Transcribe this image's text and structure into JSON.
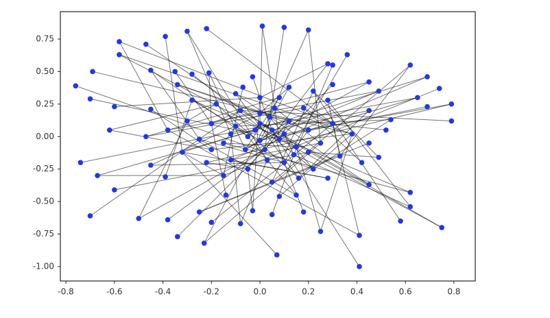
{
  "chart_data": {
    "type": "network",
    "x": [
      0.01,
      0.1,
      0.2,
      -0.22,
      -0.3,
      -0.39,
      -0.58,
      -0.47,
      -0.58,
      0.36,
      0.28,
      0.3,
      0.62,
      -0.69,
      -0.45,
      -0.35,
      0.69,
      -0.76,
      0.45,
      0.74,
      0.49,
      -0.7,
      0.65,
      -0.6,
      0.79,
      0.69,
      0.45,
      -0.45,
      0.54,
      0.79,
      -0.62,
      0.52,
      -0.47,
      0.45,
      0.49,
      -0.74,
      -0.45,
      0.42,
      -0.67,
      -0.39,
      0.45,
      -0.6,
      0.62,
      -0.7,
      -0.5,
      -0.38,
      0.62,
      0.58,
      0.75,
      -0.34,
      -0.23,
      -0.2,
      -0.08,
      0.07,
      0.41,
      0.41,
      0.25,
      0.18,
      -0.03,
      0.05,
      -0.25,
      0.08,
      0.15,
      -0.14,
      0.28,
      -0.28,
      -0.21,
      -0.07,
      0.12,
      0.3,
      -0.34,
      -0.03,
      0.0,
      0.05,
      -0.05,
      0.08,
      -0.1,
      0.12,
      -0.15,
      0.02,
      0.15,
      -0.2,
      0.2,
      -0.08,
      0.06,
      -0.25,
      0.25,
      0.1,
      -0.12,
      0.0,
      -0.18,
      0.18,
      -0.3,
      0.3,
      -0.05,
      0.22,
      -0.22,
      0.04,
      -0.02,
      0.1,
      -0.12,
      0.14,
      -0.06,
      0.0,
      0.08,
      -0.28,
      0.28,
      -0.32,
      0.33,
      -0.15,
      0.16,
      0.05,
      -0.1,
      0.22,
      -0.38,
      0.38,
      0.0,
      -0.2,
      0.2,
      0.03
    ],
    "y": [
      0.85,
      0.84,
      0.82,
      0.83,
      0.81,
      0.77,
      0.73,
      0.71,
      0.63,
      0.63,
      0.56,
      0.55,
      0.55,
      0.5,
      0.51,
      0.5,
      0.46,
      0.39,
      0.42,
      0.37,
      0.35,
      0.29,
      0.3,
      0.23,
      0.25,
      0.23,
      0.2,
      0.21,
      0.13,
      0.12,
      0.05,
      0.05,
      0.0,
      -0.05,
      -0.16,
      -0.2,
      -0.22,
      -0.2,
      -0.3,
      -0.31,
      -0.37,
      -0.41,
      -0.43,
      -0.61,
      -0.63,
      -0.64,
      -0.54,
      -0.65,
      -0.7,
      -0.77,
      -0.82,
      -0.66,
      -0.67,
      -0.91,
      -0.76,
      -1.0,
      -0.73,
      -0.58,
      -0.57,
      -0.6,
      -0.58,
      -0.46,
      -0.45,
      -0.45,
      -0.32,
      0.48,
      0.49,
      0.38,
      0.38,
      0.4,
      0.4,
      0.46,
      0.1,
      0.05,
      0.0,
      -0.02,
      0.08,
      0.12,
      -0.05,
      -0.1,
      -0.08,
      0.1,
      0.05,
      0.2,
      0.22,
      -0.02,
      -0.05,
      -0.2,
      -0.18,
      0.3,
      0.25,
      0.22,
      0.12,
      0.1,
      -0.25,
      -0.25,
      -0.2,
      0.15,
      0.05,
      0.02,
      0.02,
      -0.14,
      -0.1,
      -0.03,
      0.3,
      0.28,
      0.28,
      -0.12,
      -0.15,
      -0.3,
      -0.32,
      -0.35,
      0.33,
      0.35,
      0.05,
      0.02,
      0.18,
      -0.1,
      -0.12,
      -0.18
    ],
    "edges": [
      [
        0,
        72
      ],
      [
        1,
        79
      ],
      [
        2,
        86
      ],
      [
        3,
        93
      ],
      [
        4,
        100
      ],
      [
        5,
        107
      ],
      [
        6,
        114
      ],
      [
        7,
        73
      ],
      [
        8,
        80
      ],
      [
        9,
        87
      ],
      [
        10,
        94
      ],
      [
        11,
        101
      ],
      [
        12,
        108
      ],
      [
        13,
        115
      ],
      [
        14,
        74
      ],
      [
        15,
        81
      ],
      [
        16,
        88
      ],
      [
        17,
        95
      ],
      [
        18,
        102
      ],
      [
        19,
        109
      ],
      [
        20,
        116
      ],
      [
        21,
        75
      ],
      [
        22,
        82
      ],
      [
        23,
        89
      ],
      [
        24,
        96
      ],
      [
        25,
        103
      ],
      [
        26,
        110
      ],
      [
        27,
        117
      ],
      [
        28,
        76
      ],
      [
        29,
        83
      ],
      [
        30,
        90
      ],
      [
        31,
        97
      ],
      [
        32,
        104
      ],
      [
        33,
        111
      ],
      [
        34,
        118
      ],
      [
        35,
        77
      ],
      [
        36,
        84
      ],
      [
        37,
        91
      ],
      [
        38,
        98
      ],
      [
        39,
        105
      ],
      [
        40,
        112
      ],
      [
        41,
        119
      ],
      [
        42,
        78
      ],
      [
        43,
        85
      ],
      [
        44,
        92
      ],
      [
        45,
        99
      ],
      [
        46,
        106
      ],
      [
        47,
        113
      ],
      [
        48,
        72
      ],
      [
        49,
        79
      ],
      [
        50,
        86
      ],
      [
        51,
        93
      ],
      [
        52,
        100
      ],
      [
        53,
        107
      ],
      [
        54,
        114
      ],
      [
        55,
        73
      ],
      [
        56,
        80
      ],
      [
        57,
        87
      ],
      [
        58,
        94
      ],
      [
        59,
        101
      ],
      [
        60,
        108
      ],
      [
        61,
        115
      ],
      [
        62,
        74
      ],
      [
        63,
        81
      ],
      [
        64,
        88
      ],
      [
        65,
        95
      ],
      [
        66,
        102
      ],
      [
        67,
        109
      ],
      [
        68,
        116
      ],
      [
        69,
        75
      ],
      [
        70,
        82
      ],
      [
        71,
        89
      ],
      [
        0,
        75
      ],
      [
        2,
        97
      ],
      [
        4,
        119
      ],
      [
        6,
        93
      ],
      [
        8,
        115
      ],
      [
        10,
        89
      ],
      [
        12,
        111
      ],
      [
        14,
        85
      ],
      [
        16,
        107
      ],
      [
        18,
        81
      ],
      [
        20,
        103
      ],
      [
        22,
        77
      ],
      [
        24,
        99
      ],
      [
        26,
        73
      ],
      [
        28,
        95
      ],
      [
        30,
        117
      ],
      [
        32,
        91
      ],
      [
        34,
        113
      ],
      [
        36,
        87
      ],
      [
        38,
        109
      ],
      [
        40,
        83
      ],
      [
        42,
        105
      ],
      [
        44,
        79
      ],
      [
        46,
        101
      ],
      [
        48,
        75
      ],
      [
        50,
        97
      ],
      [
        52,
        119
      ],
      [
        54,
        93
      ],
      [
        56,
        115
      ],
      [
        58,
        89
      ],
      [
        60,
        111
      ],
      [
        62,
        85
      ],
      [
        64,
        107
      ],
      [
        66,
        81
      ],
      [
        68,
        103
      ],
      [
        70,
        77
      ],
      [
        72,
        73
      ],
      [
        72,
        74
      ],
      [
        73,
        75
      ],
      [
        74,
        76
      ],
      [
        75,
        77
      ],
      [
        76,
        78
      ],
      [
        77,
        79
      ],
      [
        78,
        80
      ],
      [
        80,
        82
      ],
      [
        81,
        83
      ],
      [
        83,
        85
      ],
      [
        84,
        86
      ],
      [
        85,
        87
      ],
      [
        86,
        88
      ],
      [
        87,
        89
      ],
      [
        90,
        92
      ],
      [
        91,
        93
      ],
      [
        94,
        96
      ],
      [
        95,
        97
      ],
      [
        98,
        100
      ],
      [
        99,
        101
      ],
      [
        102,
        104
      ],
      [
        103,
        105
      ],
      [
        106,
        108
      ],
      [
        107,
        109
      ],
      [
        110,
        112
      ],
      [
        111,
        113
      ],
      [
        114,
        116
      ],
      [
        115,
        117
      ],
      [
        118,
        119
      ],
      [
        72,
        98
      ],
      [
        73,
        103
      ],
      [
        77,
        102
      ],
      [
        90,
        110
      ]
    ],
    "node_color": "#2138e8",
    "edge_color": "#000000",
    "xlim": [
      -0.823,
      0.888
    ],
    "ylim": [
      -1.111,
      0.961
    ],
    "xticks": [
      -0.8,
      -0.6,
      -0.4,
      -0.2,
      {
        "value": 0,
        "label": "0.0"
      },
      0.2,
      0.4,
      0.6,
      0.8
    ],
    "yticks": [
      0.75,
      {
        "value": 0.5,
        "label": "0.50"
      },
      0.25,
      {
        "value": 0,
        "label": "0.00"
      },
      -0.25,
      {
        "value": -0.5,
        "label": "-0.50"
      },
      -0.75,
      {
        "value": -1,
        "label": "-1.00"
      }
    ]
  }
}
